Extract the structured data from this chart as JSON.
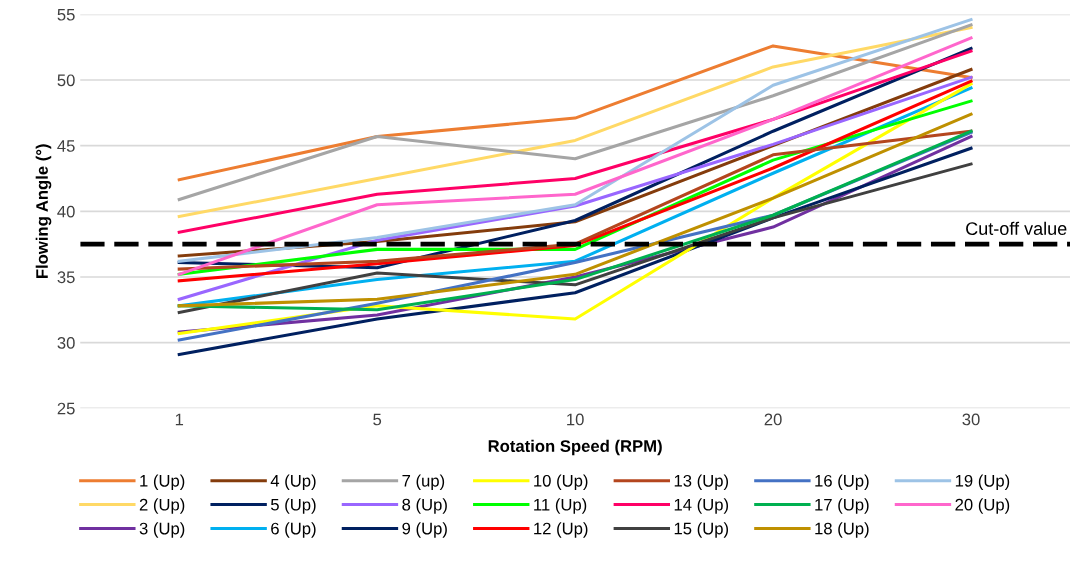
{
  "chart_data": {
    "type": "line",
    "xlabel": "Rotation Speed (RPM)",
    "ylabel": "Flowing Angle (°)",
    "categories": [
      "1",
      "5",
      "10",
      "20",
      "30"
    ],
    "ylim": [
      25,
      55
    ],
    "yticks": [
      25,
      30,
      35,
      40,
      45,
      50,
      55
    ],
    "grid": "y",
    "legend": "bottom",
    "marker": "none",
    "line_style": "solid",
    "ref_lines": [
      {
        "axis": "y",
        "value": 37.5,
        "label": "Cut-off value",
        "color": "#000000",
        "line_style": "dashed"
      }
    ],
    "series": [
      {
        "name": "1 (Up)",
        "color": "#ed7d31",
        "values": [
          42.4,
          45.7,
          47.1,
          52.6,
          50.2
        ]
      },
      {
        "name": "2 (Up)",
        "color": "#ffd966",
        "values": [
          39.6,
          42.5,
          45.4,
          51.0,
          54.0
        ]
      },
      {
        "name": "3 (Up)",
        "color": "#7030a0",
        "values": [
          30.8,
          32.1,
          35.0,
          38.8,
          45.7
        ]
      },
      {
        "name": "4 (Up)",
        "color": "#843c0c",
        "values": [
          36.6,
          37.7,
          39.2,
          45.0,
          50.8
        ]
      },
      {
        "name": "5 (Up)",
        "color": "#002060",
        "values": [
          36.1,
          35.7,
          39.3,
          46.1,
          52.4
        ]
      },
      {
        "name": "6 (Up)",
        "color": "#00b0f0",
        "values": [
          32.8,
          34.8,
          36.2,
          42.9,
          49.4
        ]
      },
      {
        "name": "7 (up)",
        "color": "#a5a5a5",
        "values": [
          40.9,
          45.7,
          44.0,
          48.8,
          54.2
        ]
      },
      {
        "name": "8 (Up)",
        "color": "#9966ff",
        "values": [
          33.3,
          37.8,
          40.4,
          45.1,
          50.2
        ]
      },
      {
        "name": "9 (Up)",
        "color": "#002060",
        "values": [
          29.1,
          31.8,
          33.8,
          39.5,
          44.8
        ]
      },
      {
        "name": "10 (Up)",
        "color": "#ffff00",
        "values": [
          30.7,
          32.8,
          31.8,
          41.0,
          49.7
        ]
      },
      {
        "name": "11 (Up)",
        "color": "#00ff00",
        "values": [
          35.2,
          37.1,
          37.1,
          43.9,
          48.4
        ]
      },
      {
        "name": "12 (Up)",
        "color": "#ff0000",
        "values": [
          34.7,
          36.0,
          37.4,
          43.3,
          49.9
        ]
      },
      {
        "name": "13 (Up)",
        "color": "#b4461e",
        "values": [
          35.6,
          36.2,
          37.5,
          44.3,
          46.1
        ]
      },
      {
        "name": "14 (Up)",
        "color": "#ff0066",
        "values": [
          38.4,
          41.3,
          42.5,
          47.0,
          52.2
        ]
      },
      {
        "name": "15 (Up)",
        "color": "#404040",
        "values": [
          32.3,
          35.3,
          34.4,
          39.5,
          43.6
        ]
      },
      {
        "name": "16 (Up)",
        "color": "#4472c4",
        "values": [
          30.2,
          33.0,
          36.1,
          39.7,
          46.0
        ]
      },
      {
        "name": "17 (Up)",
        "color": "#00b050",
        "values": [
          32.8,
          32.5,
          34.8,
          39.7,
          46.1
        ]
      },
      {
        "name": "18 (Up)",
        "color": "#bf9000",
        "values": [
          32.8,
          33.3,
          35.2,
          41.0,
          47.4
        ]
      },
      {
        "name": "19 (Up)",
        "color": "#9dc3e6",
        "values": [
          36.2,
          38.0,
          40.5,
          49.6,
          54.6
        ]
      },
      {
        "name": "20 (Up)",
        "color": "#ff66cc",
        "values": [
          35.2,
          40.5,
          41.3,
          47.0,
          53.2
        ]
      }
    ]
  }
}
